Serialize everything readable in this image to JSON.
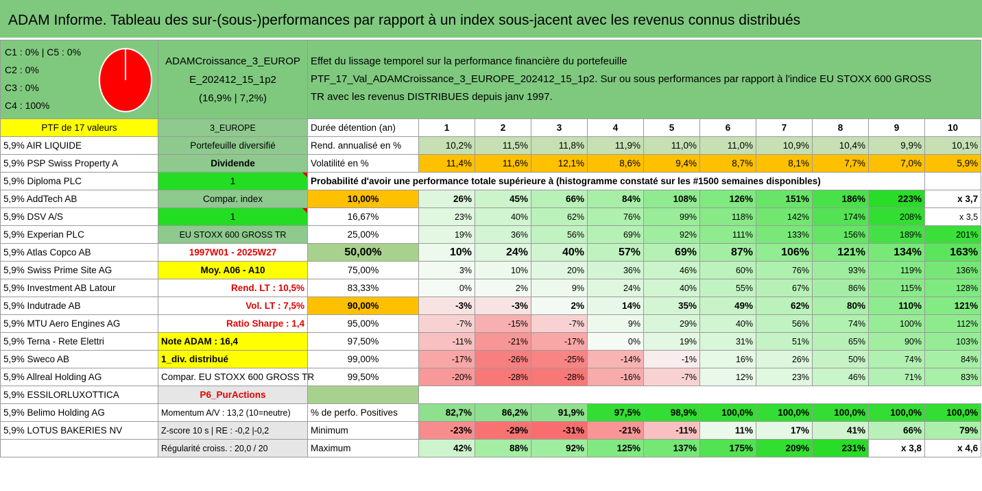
{
  "title": "ADAM Informe. Tableau des sur-(sous-)performances par rapport à un index sous-jacent avec les revenus connus distribués",
  "summary": {
    "classes": [
      "C1 : 0% | C5 : 0%",
      "C2 : 0%",
      "C3 : 0%",
      "C4 : 100%"
    ],
    "pie_fraction_c4": 1.0,
    "portfolio_name_lines": [
      "ADAMCroissance_3_EUROP",
      "E_202412_15_1p2",
      "(16,9% | 7,2%)"
    ],
    "description_lines": [
      "Effet du lissage temporel sur la performance financière du portefeuille",
      "PTF_17_Val_ADAMCroissance_3_EUROPE_202412_15_1p2. Sur ou sous performances par rapport à l'indice EU STOXX 600 GROSS",
      "TR avec les revenus DISTRIBUES depuis janv 1997."
    ]
  },
  "left_column": [
    "PTF de 17 valeurs",
    "5,9% AIR LIQUIDE",
    "5,9% PSP Swiss Property A",
    "5,9% Diploma PLC",
    "5,9% AddTech AB",
    "5,9% DSV A/S",
    "5,9% Experian PLC",
    "5,9% Atlas Copco AB",
    "5,9% Swiss Prime Site AG",
    "5,9% Investment AB Latour",
    "5,9% Indutrade AB",
    "5,9% MTU Aero Engines AG",
    "5,9% Terna - Rete Elettri",
    "5,9% Sweco AB",
    "5,9% Allreal Holding AG",
    "5,9% ESSILORLUXOTTICA",
    "5,9% Belimo Holding AG",
    "5,9% LOTUS BAKERIES NV",
    ""
  ],
  "second_column": [
    "3_EUROPE",
    "Portefeuille diversifié",
    "Dividende",
    "1",
    "Compar. index",
    "1",
    "EU STOXX 600 GROSS TR",
    "1997W01 - 2025W27",
    "Moy. A06 - A10",
    "Rend. LT : 10,5%",
    "Vol. LT : 7,5%",
    "Ratio Sharpe : 1,4",
    "Note ADAM : 16,4",
    "1_div. distribué",
    "Compar. EU STOXX 600 GROSS TR",
    "P6_PurActions",
    "Momentum A/V : 13,2 (10=neutre)",
    "Z-score 10 s | RE : -0,2 |-0,2",
    "Régularité croiss. : 20,0 / 20"
  ],
  "header": {
    "label": "Durée détention (an)",
    "years": [
      "1",
      "2",
      "3",
      "4",
      "5",
      "6",
      "7",
      "8",
      "9",
      "10"
    ]
  },
  "rend": {
    "label": "Rend. annualisé en %",
    "values": [
      "10,2%",
      "11,5%",
      "11,8%",
      "11,9%",
      "11,0%",
      "11,0%",
      "10,9%",
      "10,4%",
      "9,9%",
      "10,1%"
    ]
  },
  "vol": {
    "label": "Volatilité en %",
    "values": [
      "11,4%",
      "11,6%",
      "12,1%",
      "8,6%",
      "9,4%",
      "8,7%",
      "8,1%",
      "7,7%",
      "7,0%",
      "5,9%"
    ]
  },
  "probability_title": "Probabilité d'avoir une performance totale supérieure à (histogramme constaté sur les #1500 semaines disponibles)",
  "prob_rows": [
    {
      "p": "10,00%",
      "values": [
        "26%",
        "45%",
        "66%",
        "84%",
        "108%",
        "126%",
        "151%",
        "186%",
        "223%",
        "x 3,7"
      ]
    },
    {
      "p": "16,67%",
      "values": [
        "23%",
        "40%",
        "62%",
        "76%",
        "99%",
        "118%",
        "142%",
        "174%",
        "208%",
        "x 3,5"
      ]
    },
    {
      "p": "25,00%",
      "values": [
        "19%",
        "36%",
        "56%",
        "69%",
        "92%",
        "111%",
        "133%",
        "156%",
        "189%",
        "201%"
      ]
    },
    {
      "p": "50,00%",
      "values": [
        "10%",
        "24%",
        "40%",
        "57%",
        "69%",
        "87%",
        "106%",
        "121%",
        "134%",
        "163%"
      ]
    },
    {
      "p": "75,00%",
      "values": [
        "3%",
        "10%",
        "20%",
        "36%",
        "46%",
        "60%",
        "76%",
        "93%",
        "119%",
        "136%"
      ]
    },
    {
      "p": "83,33%",
      "values": [
        "0%",
        "2%",
        "9%",
        "24%",
        "40%",
        "55%",
        "67%",
        "86%",
        "115%",
        "128%"
      ]
    },
    {
      "p": "90,00%",
      "values": [
        "-3%",
        "-3%",
        "2%",
        "14%",
        "35%",
        "49%",
        "62%",
        "80%",
        "110%",
        "121%"
      ]
    },
    {
      "p": "95,00%",
      "values": [
        "-7%",
        "-15%",
        "-7%",
        "9%",
        "29%",
        "40%",
        "56%",
        "74%",
        "100%",
        "112%"
      ]
    },
    {
      "p": "97,50%",
      "values": [
        "-11%",
        "-21%",
        "-17%",
        "0%",
        "19%",
        "31%",
        "51%",
        "65%",
        "90%",
        "103%"
      ]
    },
    {
      "p": "99,00%",
      "values": [
        "-17%",
        "-26%",
        "-25%",
        "-14%",
        "-1%",
        "16%",
        "26%",
        "50%",
        "74%",
        "84%"
      ]
    },
    {
      "p": "99,50%",
      "values": [
        "-20%",
        "-28%",
        "-28%",
        "-16%",
        "-7%",
        "12%",
        "23%",
        "46%",
        "71%",
        "83%"
      ]
    }
  ],
  "positives": {
    "label": "% de perfo. Positives",
    "values": [
      "82,7%",
      "86,2%",
      "91,9%",
      "97,5%",
      "98,9%",
      "100,0%",
      "100,0%",
      "100,0%",
      "100,0%",
      "100,0%"
    ]
  },
  "minimum": {
    "label": "Minimum",
    "values": [
      "-23%",
      "-29%",
      "-31%",
      "-21%",
      "-11%",
      "11%",
      "17%",
      "41%",
      "66%",
      "79%"
    ]
  },
  "maximum": {
    "label": "Maximum",
    "values": [
      "42%",
      "88%",
      "92%",
      "125%",
      "137%",
      "175%",
      "209%",
      "231%",
      "x 3,8",
      "x 4,6"
    ]
  },
  "colors": {
    "title_green": "#7fc97f",
    "orange": "#ffc000",
    "yellow": "#ffff00",
    "bright_green": "#22dd22",
    "pie_red": "#ff0000"
  }
}
